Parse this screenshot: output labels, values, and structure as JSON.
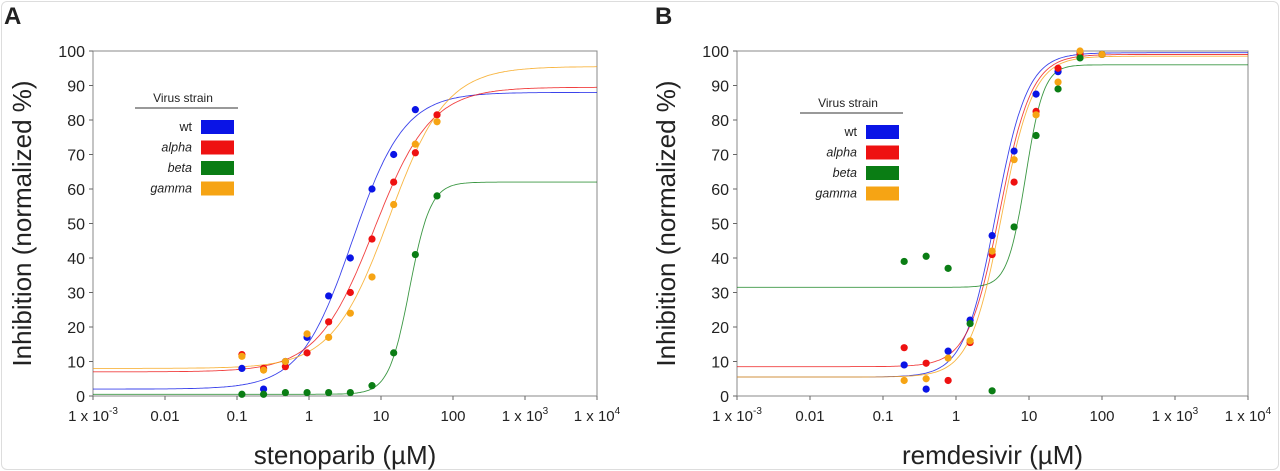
{
  "legend_title": "Virus strain",
  "colors": {
    "wt": "#0a14e6",
    "alpha": "#ee1111",
    "beta": "#0a7d14",
    "gamma": "#f6a414"
  },
  "chart_data": [
    {
      "panel": "A",
      "type": "scatter",
      "xlabel": "stenoparib (µM)",
      "ylabel": "Inhibition (normalized %)",
      "xscale": "log",
      "xlim": [
        0.001,
        10000
      ],
      "ylim": [
        0,
        100
      ],
      "xticks": [
        "1 x 10-3",
        "0.01",
        "0.1",
        "1",
        "10",
        "100",
        "1 x 103",
        "1 x 104"
      ],
      "yticks": [
        0,
        10,
        20,
        30,
        40,
        50,
        60,
        70,
        80,
        90,
        100
      ],
      "grid": false,
      "legend_placement": "top-left",
      "x": [
        0.117,
        0.234,
        0.47,
        0.94,
        1.875,
        3.75,
        7.5,
        15,
        30,
        60
      ],
      "series": [
        {
          "name": "wt",
          "values": [
            8,
            2,
            10,
            17,
            29,
            40,
            60,
            70,
            83,
            null
          ],
          "fit": {
            "bottom": 2,
            "top": 88,
            "ec50": 4,
            "hill": 1.2
          }
        },
        {
          "name": "alpha",
          "values": [
            12,
            8,
            8.5,
            12.5,
            21.5,
            30,
            45.5,
            62,
            70.5,
            81.5
          ],
          "fit": {
            "bottom": 7,
            "top": 89.5,
            "ec50": 8,
            "hill": 1.1
          }
        },
        {
          "name": "beta",
          "values": [
            0.5,
            0.5,
            1,
            1,
            1,
            1,
            3,
            12.5,
            41,
            58
          ],
          "fit": {
            "bottom": 0.5,
            "top": 62,
            "ec50": 25,
            "hill": 3
          }
        },
        {
          "name": "gamma",
          "values": [
            11.5,
            7.5,
            10,
            18,
            17,
            24,
            34.5,
            55.5,
            73,
            79.5
          ],
          "fit": {
            "bottom": 8,
            "top": 95.5,
            "ec50": 13,
            "hill": 1.1
          }
        }
      ]
    },
    {
      "panel": "B",
      "type": "scatter",
      "xlabel": "remdesivir (µM)",
      "ylabel": "Inhibition (normalized %)",
      "xscale": "log",
      "xlim": [
        0.001,
        10000
      ],
      "ylim": [
        0,
        100
      ],
      "xticks": [
        "1 x 10-3",
        "0.01",
        "0.1",
        "1",
        "10",
        "100",
        "1 x 103",
        "1 x 104"
      ],
      "yticks": [
        0,
        10,
        20,
        30,
        40,
        50,
        60,
        70,
        80,
        90,
        100
      ],
      "grid": false,
      "legend_placement": "top-left",
      "x": [
        0.195,
        0.39,
        0.78,
        1.56,
        3.125,
        6.25,
        12.5,
        25,
        50,
        100
      ],
      "series": [
        {
          "name": "wt",
          "values": [
            9,
            2,
            13,
            22,
            46.5,
            71,
            87.5,
            94,
            99.5,
            99
          ],
          "fit": {
            "bottom": 5.5,
            "top": 99.5,
            "ec50": 3.5,
            "hill": 2
          }
        },
        {
          "name": "alpha",
          "values": [
            14,
            9.5,
            4.5,
            15.5,
            41,
            62,
            82.5,
            95,
            99,
            99
          ],
          "fit": {
            "bottom": 8.5,
            "top": 99,
            "ec50": 4,
            "hill": 2
          }
        },
        {
          "name": "beta",
          "values": [
            39,
            40.5,
            37,
            21,
            1.5,
            49,
            75.5,
            89,
            98,
            99
          ],
          "fit": {
            "bottom": 31.5,
            "top": 96,
            "ec50": 9,
            "hill": 3.5
          }
        },
        {
          "name": "gamma",
          "values": [
            4.5,
            5,
            11,
            16,
            42,
            68.5,
            81.5,
            91,
            100,
            99
          ],
          "fit": {
            "bottom": 5.5,
            "top": 98.5,
            "ec50": 4.2,
            "hill": 2
          }
        }
      ]
    }
  ]
}
